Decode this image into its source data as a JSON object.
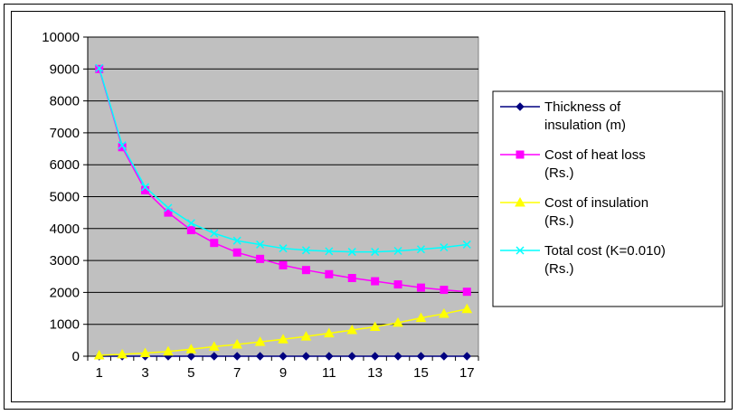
{
  "chart_data": {
    "type": "line",
    "title": "",
    "xlabel": "",
    "ylabel": "",
    "x": [
      1,
      2,
      3,
      4,
      5,
      6,
      7,
      8,
      9,
      10,
      11,
      12,
      13,
      14,
      15,
      16,
      17
    ],
    "x_tick_labels": [
      "1",
      "3",
      "5",
      "7",
      "9",
      "11",
      "13",
      "15",
      "17"
    ],
    "ylim": [
      0,
      10000
    ],
    "y_tick_labels": [
      "0",
      "1000",
      "2000",
      "3000",
      "4000",
      "5000",
      "6000",
      "7000",
      "8000",
      "9000",
      "10000"
    ],
    "grid": "horizontal",
    "plot_background": "#c0c0c0",
    "legend_position": "right",
    "series": [
      {
        "name": "Thickness of insulation (m)",
        "legend_lines": [
          "Thickness of",
          "insulation (m)"
        ],
        "color": "#000080",
        "marker": "diamond",
        "values": [
          0.025,
          0.05,
          0.075,
          0.1,
          0.125,
          0.15,
          0.175,
          0.2,
          0.225,
          0.25,
          0.275,
          0.3,
          0.325,
          0.35,
          0.375,
          0.4,
          0.425
        ]
      },
      {
        "name": "Cost of heat loss (Rs.)",
        "legend_lines": [
          "Cost of heat loss",
          "(Rs.)"
        ],
        "color": "#ff00ff",
        "marker": "square",
        "values": [
          9000,
          6550,
          5200,
          4500,
          3950,
          3550,
          3250,
          3050,
          2850,
          2700,
          2570,
          2450,
          2350,
          2250,
          2150,
          2080,
          2020
        ]
      },
      {
        "name": "Cost of insulation (Rs.)",
        "legend_lines": [
          "Cost of insulation",
          "(Rs.)"
        ],
        "color": "#ffff00",
        "marker": "triangle",
        "values": [
          30,
          60,
          100,
          150,
          220,
          300,
          370,
          450,
          530,
          620,
          720,
          820,
          920,
          1050,
          1200,
          1330,
          1480
        ]
      },
      {
        "name": "Total cost (K=0.010) (Rs.)",
        "legend_lines": [
          "Total cost (K=0.010)",
          "(Rs.)"
        ],
        "color": "#00ffff",
        "marker": "x",
        "values": [
          9030,
          6610,
          5300,
          4650,
          4170,
          3850,
          3620,
          3500,
          3380,
          3320,
          3290,
          3270,
          3270,
          3300,
          3350,
          3410,
          3500
        ]
      }
    ]
  }
}
